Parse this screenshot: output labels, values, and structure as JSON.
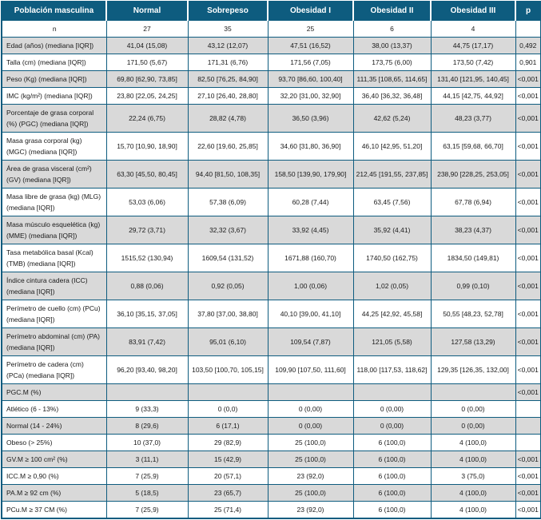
{
  "colors": {
    "header_bg": "#0e5c7f",
    "border": "#0e5c7f",
    "row_alt_bg": "#d9d9d9",
    "header_text": "#ffffff",
    "body_text": "#1a1a1a"
  },
  "table": {
    "header": [
      "Población masculina",
      "Normal",
      "Sobrepeso",
      "Obesidad I",
      "Obesidad II",
      "Obesidad III",
      "p"
    ],
    "rows": [
      {
        "label": "n",
        "values": [
          "27",
          "35",
          "25",
          "6",
          "4"
        ],
        "p": ""
      },
      {
        "label": "Edad (años) (mediana [IQR])",
        "values": [
          "41,04 (15,08)",
          "43,12 (12,07)",
          "47,51 (16,52)",
          "38,00 (13,37)",
          "44,75 (17,17)"
        ],
        "p": "0,492"
      },
      {
        "label": "Talla (cm) (mediana [IQR])",
        "values": [
          "171,50 (5,67)",
          "171,31 (6,76)",
          "171,56 (7,05)",
          "173,75 (6,00)",
          "173,50 (7,42)"
        ],
        "p": "0,901"
      },
      {
        "label": "Peso (Kg) (mediana [IQR])",
        "values": [
          "69,80 [62,90, 73,85]",
          "82,50 [76,25, 84,90]",
          "93,70 [86,60, 100,40]",
          "111,35 [108,65, 114,65]",
          "131,40 [121,95, 140,45]"
        ],
        "p": "<0,001"
      },
      {
        "label": "IMC (kg/m²) (mediana [IQR])",
        "values": [
          "23,80 [22,05, 24,25]",
          "27,10 [26,40, 28,80]",
          "32,20 [31,00, 32,90]",
          "36,40 [36,32, 36,48]",
          "44,15 [42,75, 44,92]"
        ],
        "p": "<0,001"
      },
      {
        "label": "Porcentaje de grasa corporal (%) (PGC) (mediana [IQR])",
        "values": [
          "22,24 (6,75)",
          "28,82 (4,78)",
          "36,50 (3,96)",
          "42,62 (5,24)",
          "48,23 (3,77)"
        ],
        "p": "<0,001"
      },
      {
        "label": "Masa grasa corporal (kg) (MGC) (mediana [IQR])",
        "values": [
          "15,70 [10,90, 18,90]",
          "22,60 [19,60, 25,85]",
          "34,60 [31,80, 36,90]",
          "46,10 [42,95, 51,20]",
          "63,15 [59,68, 66,70]"
        ],
        "p": "<0,001"
      },
      {
        "label": "Área de grasa visceral (cm²) (GV) (mediana [IQR])",
        "values": [
          "63,30 [45,50, 80,45]",
          "94,40 [81,50, 108,35]",
          "158,50 [139,90, 179,90]",
          "212,45 [191,55, 237,85]",
          "238,90 [228,25, 253,05]"
        ],
        "p": "<0,001"
      },
      {
        "label": "Masa libre de grasa (kg) (MLG) (mediana [IQR])",
        "values": [
          "53,03 (6,06)",
          "57,38 (6,09)",
          "60,28 (7,44)",
          "63,45 (7,56)",
          "67,78 (6,94)"
        ],
        "p": "<0,001"
      },
      {
        "label": "Masa músculo esquelética (kg) (MME) (mediana [IQR])",
        "values": [
          "29,72 (3,71)",
          "32,32 (3,67)",
          "33,92 (4,45)",
          "35,92 (4,41)",
          "38,23 (4,37)"
        ],
        "p": "<0,001"
      },
      {
        "label": "Tasa metabólica basal (Kcal) (TMB) (mediana [IQR])",
        "values": [
          "1515,52 (130,94)",
          "1609,54 (131,52)",
          "1671,88 (160,70)",
          "1740,50 (162,75)",
          "1834,50 (149,81)"
        ],
        "p": "<0,001"
      },
      {
        "label": "Índice cintura cadera (ICC) (mediana [IQR])",
        "values": [
          "0,88 (0,06)",
          "0,92 (0,05)",
          "1,00 (0,06)",
          "1,02 (0,05)",
          "0,99 (0,10)"
        ],
        "p": "<0,001"
      },
      {
        "label": "Perímetro de cuello (cm) (PCu) (mediana [IQR])",
        "values": [
          "36,10 [35,15, 37,05]",
          "37,80 [37,00, 38,80]",
          "40,10 [39,00, 41,10]",
          "44,25 [42,92, 45,58]",
          "50,55 [48,23, 52,78]"
        ],
        "p": "<0,001"
      },
      {
        "label": "Perímetro abdominal (cm) (PA) (mediana [IQR])",
        "values": [
          "83,91 (7,42)",
          "95,01 (6,10)",
          "109,54 (7,87)",
          "121,05 (5,58)",
          "127,58 (13,29)"
        ],
        "p": "<0,001"
      },
      {
        "label": "Perímetro de cadera (cm) (PCa) (mediana [IQR])",
        "values": [
          "96,20 [93,40, 98,20]",
          "103,50 [100,70, 105,15]",
          "109,90 [107,50, 111,60]",
          "118,00 [117,53, 118,62]",
          "129,35 [126,35, 132,00]"
        ],
        "p": "<0,001"
      },
      {
        "label": "PGC.M (%)",
        "values": [
          "",
          "",
          "",
          "",
          ""
        ],
        "p": "<0,001"
      },
      {
        "label": "Atlético (6 - 13%)",
        "values": [
          "9 (33,3)",
          "0 (0,0)",
          "0 (0,00)",
          "0 (0,00)",
          "0 (0,00)"
        ],
        "p": ""
      },
      {
        "label": "Normal (14 - 24%)",
        "values": [
          "8 (29,6)",
          "6 (17,1)",
          "0 (0,00)",
          "0 (0,00)",
          "0 (0,00)"
        ],
        "p": ""
      },
      {
        "label": "Obeso (> 25%)",
        "values": [
          "10 (37,0)",
          "29 (82,9)",
          "25 (100,0)",
          "6 (100,0)",
          "4 (100,0)"
        ],
        "p": ""
      },
      {
        "label": "GV.M ≥ 100 cm² (%)",
        "values": [
          "3 (11,1)",
          "15 (42,9)",
          "25 (100,0)",
          "6 (100,0)",
          "4 (100,0)"
        ],
        "p": "<0,001"
      },
      {
        "label": "ICC.M ≥ 0,90 (%)",
        "values": [
          "7 (25,9)",
          "20 (57,1)",
          "23 (92,0)",
          "6 (100,0)",
          "3 (75,0)"
        ],
        "p": "<0,001"
      },
      {
        "label": "PA.M ≥ 92 cm (%)",
        "values": [
          "5 (18,5)",
          "23 (65,7)",
          "25 (100,0)",
          "6 (100,0)",
          "4 (100,0)"
        ],
        "p": "<0,001"
      },
      {
        "label": "PCu.M ≥ 37 CM (%)",
        "values": [
          "7 (25,9)",
          "25 (71,4)",
          "23 (92,0)",
          "6 (100,0)",
          "4 (100,0)"
        ],
        "p": "<0,001"
      }
    ]
  }
}
